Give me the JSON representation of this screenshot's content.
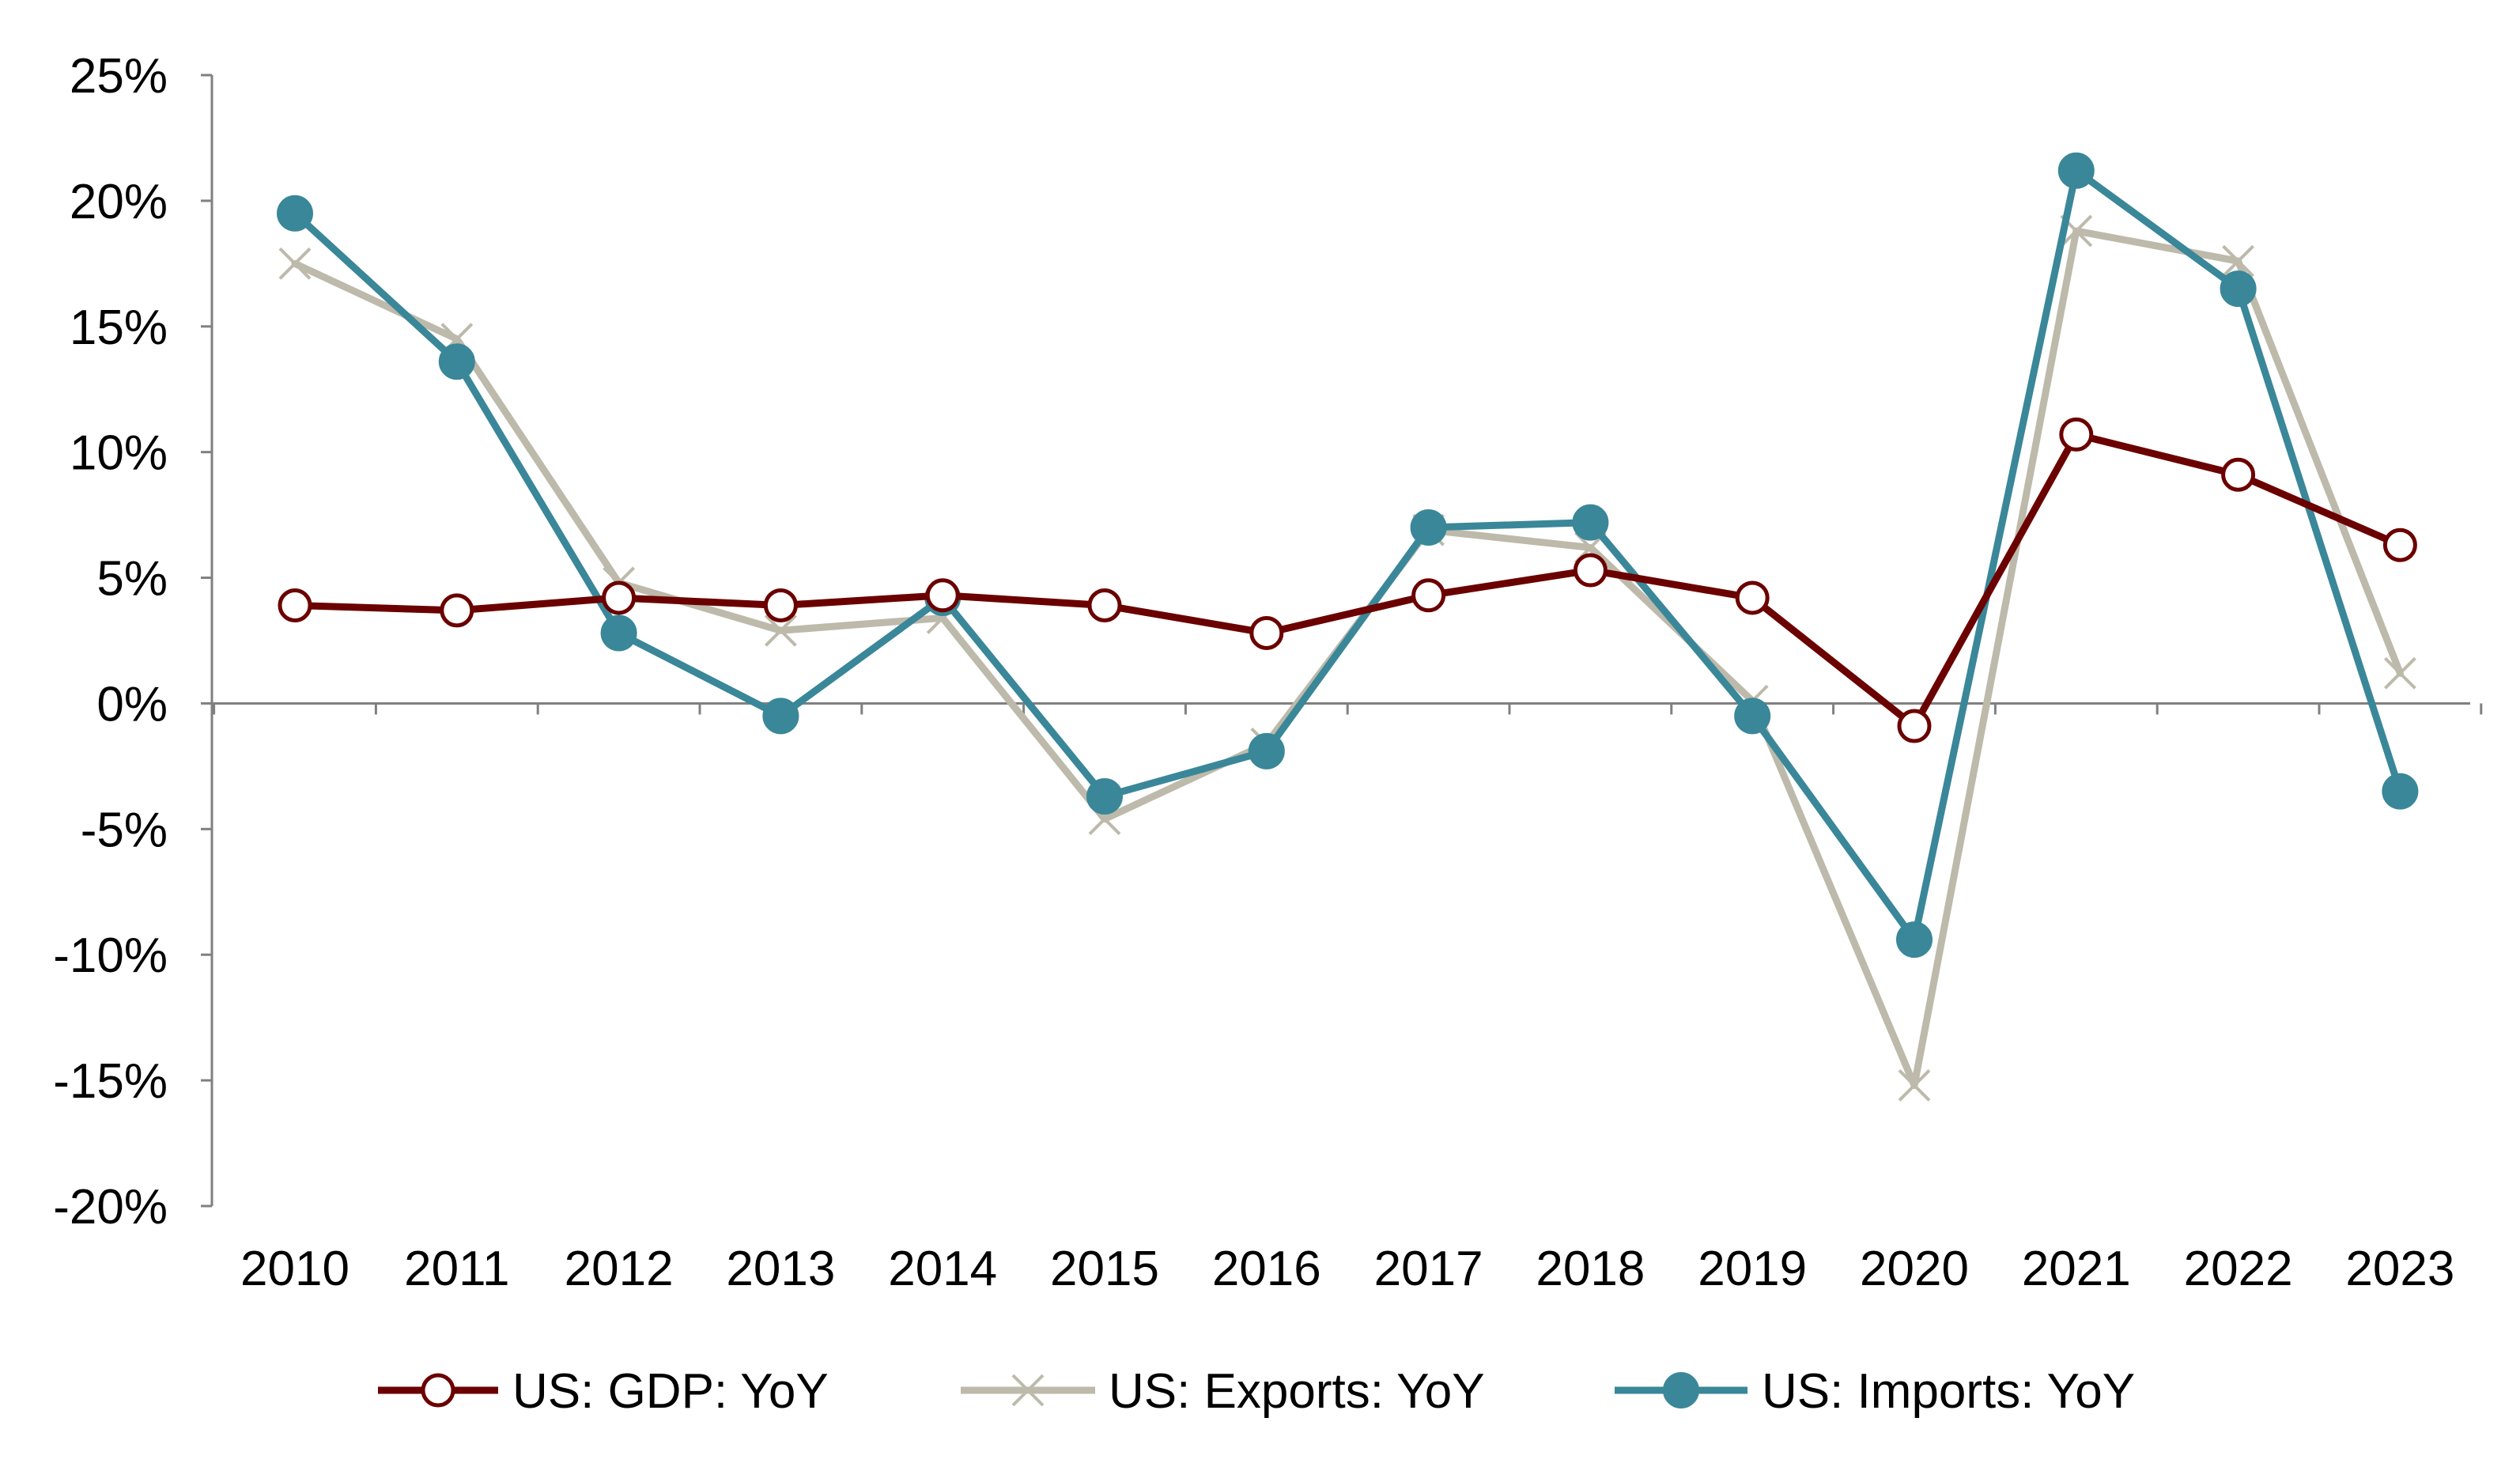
{
  "chart_data": {
    "type": "line",
    "title": "",
    "xlabel": "",
    "ylabel": "",
    "categories": [
      "2010",
      "2011",
      "2012",
      "2013",
      "2014",
      "2015",
      "2016",
      "2017",
      "2018",
      "2019",
      "2020",
      "2021",
      "2022",
      "2023"
    ],
    "ylim": [
      -20,
      25
    ],
    "yticks": [
      25,
      20,
      15,
      10,
      5,
      0,
      -5,
      -10,
      -15,
      -20
    ],
    "ytick_labels": [
      "25%",
      "20%",
      "15%",
      "10%",
      "5%",
      "0%",
      "-5%",
      "-10%",
      "-15%",
      "-20%"
    ],
    "grid": false,
    "legend_position": "bottom",
    "series": [
      {
        "name": "US: GDP: YoY",
        "color": "#6b0000",
        "marker": "open-circle",
        "values": [
          3.9,
          3.7,
          4.2,
          3.9,
          4.3,
          3.9,
          2.8,
          4.3,
          5.3,
          4.2,
          -0.9,
          10.7,
          9.1,
          6.3
        ]
      },
      {
        "name": "US: Exports: YoY",
        "color": "#bdbaab",
        "marker": "x",
        "values": [
          17.5,
          14.5,
          4.8,
          2.9,
          3.4,
          -4.6,
          -1.6,
          6.9,
          6.2,
          0.1,
          -15.2,
          18.8,
          17.6,
          1.2
        ]
      },
      {
        "name": "US: Imports: YoY",
        "color": "#3a8799",
        "marker": "filled-circle",
        "values": [
          19.5,
          13.6,
          2.8,
          -0.5,
          4.2,
          -3.7,
          -1.9,
          7.0,
          7.2,
          -0.5,
          -9.4,
          21.2,
          16.5,
          -3.5
        ]
      }
    ]
  }
}
